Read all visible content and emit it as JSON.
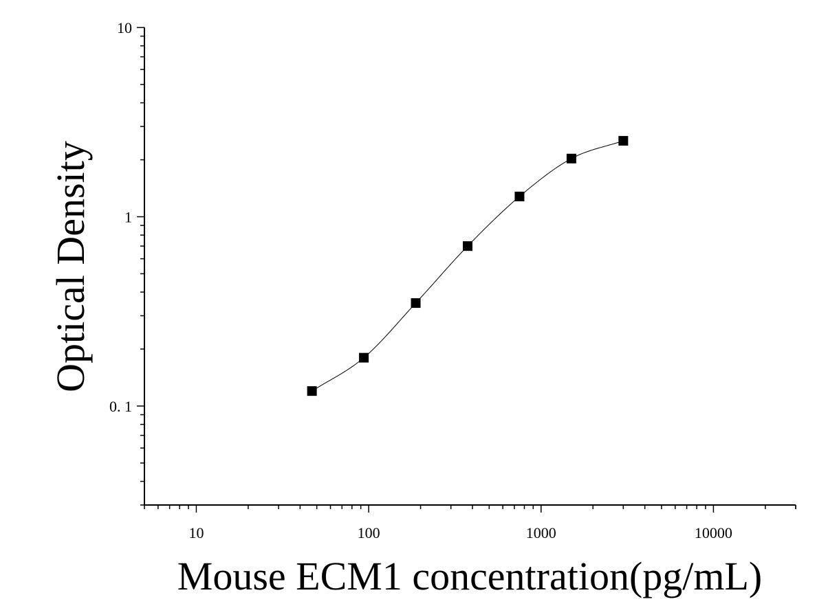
{
  "chart_data": {
    "type": "scatter",
    "xlabel": "Mouse ECM1 concentration(pg/mL)",
    "ylabel": "Optical Density",
    "x_scale": "log",
    "y_scale": "log",
    "xlim": [
      5,
      30000
    ],
    "ylim": [
      0.03,
      10
    ],
    "x_ticks": [
      10,
      100,
      1000,
      10000
    ],
    "x_tick_labels": [
      "10",
      "100",
      "1000",
      "10000"
    ],
    "y_ticks": [
      0.1,
      1,
      10
    ],
    "y_tick_labels": [
      "0. 1",
      "1",
      "10"
    ],
    "grid": false,
    "legend": "none",
    "marker": "square",
    "series": [
      {
        "points": [
          {
            "x": 46.875,
            "y": 0.12
          },
          {
            "x": 93.75,
            "y": 0.18
          },
          {
            "x": 187.5,
            "y": 0.35
          },
          {
            "x": 375,
            "y": 0.7
          },
          {
            "x": 750,
            "y": 1.28
          },
          {
            "x": 1500,
            "y": 2.03
          },
          {
            "x": 3000,
            "y": 2.52
          }
        ]
      }
    ],
    "colors": {
      "marker": "#000000",
      "curve": "#000000",
      "axis": "#000000"
    }
  }
}
